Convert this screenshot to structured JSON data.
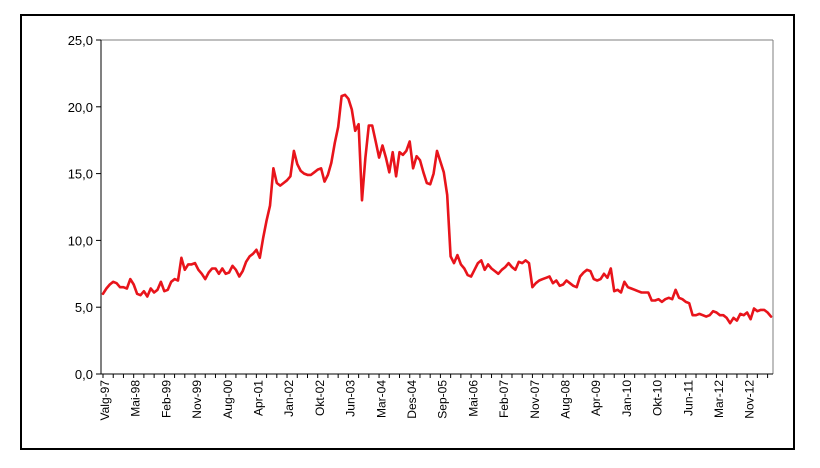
{
  "chart_data": {
    "type": "line",
    "title": "",
    "xlabel": "",
    "ylabel": "",
    "ylim": [
      0,
      25
    ],
    "yticks": [
      "0,0",
      "5,0",
      "10,0",
      "15,0",
      "20,0",
      "25,0"
    ],
    "ytick_values": [
      0,
      5,
      10,
      15,
      20,
      25
    ],
    "xticks": [
      "Valg-97",
      "Mai-98",
      "Feb-99",
      "Nov-99",
      "Aug-00",
      "Apr-01",
      "Jan-02",
      "Okt-02",
      "Jun-03",
      "Mar-04",
      "Des-04",
      "Sep-05",
      "Mai-06",
      "Feb-07",
      "Nov-07",
      "Aug-08",
      "Apr-09",
      "Jan-10",
      "Okt-10",
      "Jun-11",
      "Mar-12",
      "Nov-12"
    ],
    "grid": false,
    "line_color": "#e8141b",
    "series": [
      {
        "values": [
          6.0,
          6.4,
          6.7,
          6.9,
          6.8,
          6.5,
          6.5,
          6.4,
          7.1,
          6.7,
          6.0,
          5.9,
          6.2,
          5.8,
          6.4,
          6.1,
          6.3,
          6.9,
          6.2,
          6.3,
          6.9,
          7.1,
          7.0,
          8.7,
          7.8,
          8.2,
          8.2,
          8.3,
          7.8,
          7.5,
          7.1,
          7.6,
          7.9,
          7.9,
          7.5,
          7.9,
          7.5,
          7.6,
          8.1,
          7.8,
          7.3,
          7.7,
          8.4,
          8.8,
          9.0,
          9.3,
          8.7,
          10.2,
          11.5,
          12.6,
          15.4,
          14.3,
          14.1,
          14.3,
          14.5,
          14.8,
          16.7,
          15.7,
          15.2,
          15.0,
          14.9,
          14.9,
          15.1,
          15.3,
          15.4,
          14.4,
          14.9,
          15.8,
          17.3,
          18.5,
          20.8,
          20.9,
          20.6,
          19.8,
          18.2,
          18.7,
          13.0,
          16.2,
          18.6,
          18.6,
          17.4,
          16.2,
          17.1,
          16.2,
          15.1,
          16.6,
          14.8,
          16.6,
          16.4,
          16.7,
          17.4,
          15.4,
          16.3,
          16.0,
          15.1,
          14.3,
          14.2,
          15.0,
          16.7,
          15.9,
          15.1,
          13.4,
          8.8,
          8.3,
          8.9,
          8.2,
          7.9,
          7.4,
          7.3,
          7.8,
          8.3,
          8.5,
          7.8,
          8.2,
          7.9,
          7.7,
          7.5,
          7.8,
          8.0,
          8.3,
          8.0,
          7.8,
          8.4,
          8.3,
          8.5,
          8.3,
          6.5,
          6.8,
          7.0,
          7.1,
          7.2,
          7.3,
          6.8,
          7.0,
          6.6,
          6.7,
          7.0,
          6.8,
          6.6,
          6.5,
          7.3,
          7.6,
          7.8,
          7.7,
          7.1,
          7.0,
          7.1,
          7.5,
          7.2,
          7.9,
          6.2,
          6.3,
          6.1,
          6.9,
          6.5,
          6.4,
          6.3,
          6.2,
          6.1,
          6.1,
          6.1,
          5.5,
          5.5,
          5.6,
          5.4,
          5.6,
          5.7,
          5.6,
          6.3,
          5.7,
          5.6,
          5.4,
          5.3,
          4.4,
          4.4,
          4.5,
          4.4,
          4.3,
          4.4,
          4.7,
          4.6,
          4.4,
          4.4,
          4.2,
          3.8,
          4.2,
          4.0,
          4.5,
          4.4,
          4.6,
          4.1,
          4.9,
          4.7,
          4.8,
          4.8,
          4.6,
          4.3
        ]
      }
    ]
  }
}
